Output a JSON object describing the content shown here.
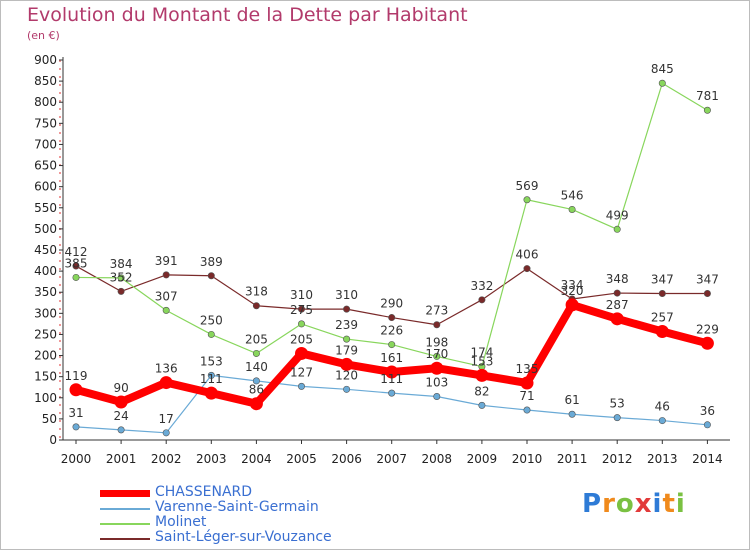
{
  "title": "Evolution du Montant de la Dette par Habitant",
  "unit": "(en €)",
  "brand": "Proxiti",
  "chart_data": {
    "type": "line",
    "title": "Evolution du Montant de la Dette par Habitant",
    "ylabel": "(en €)",
    "x": [
      "2000",
      "2001",
      "2002",
      "2003",
      "2004",
      "2005",
      "2006",
      "2007",
      "2008",
      "2009",
      "2010",
      "2011",
      "2012",
      "2013",
      "2014"
    ],
    "yticks": [
      "0",
      "50",
      "100",
      "150",
      "200",
      "250",
      "300",
      "350",
      "400",
      "450",
      "500",
      "550",
      "600",
      "650",
      "700",
      "750",
      "800",
      "850",
      "900"
    ],
    "ylim": [
      0,
      900
    ],
    "grid": false,
    "legend": "bottom-left",
    "series": [
      {
        "name": "CHASSENARD",
        "color": "#ff0000",
        "values": [
          119,
          90,
          136,
          111,
          86,
          205,
          179,
          161,
          170,
          153,
          135,
          320,
          287,
          257,
          229
        ],
        "labels": [
          "119",
          "90",
          "136",
          "111",
          "86",
          "205",
          "179",
          "161",
          "170",
          "153",
          "135",
          "320",
          "287",
          "257",
          "229"
        ]
      },
      {
        "name": "Varenne-Saint-Germain",
        "color": "#6aaad6",
        "values": [
          31,
          24,
          17,
          153,
          140,
          127,
          120,
          111,
          103,
          82,
          71,
          61,
          53,
          46,
          36
        ],
        "labels": [
          "31",
          "24",
          "17",
          "153",
          "140",
          "127",
          "120",
          "111",
          "103",
          "82",
          "71",
          "61",
          "53",
          "46",
          "36"
        ]
      },
      {
        "name": "Molinet",
        "color": "#88d65c",
        "values": [
          385,
          384,
          307,
          250,
          205,
          275,
          239,
          226,
          198,
          174,
          569,
          546,
          499,
          845,
          781
        ],
        "labels": [
          "385",
          "384",
          "307",
          "250",
          "205",
          "275",
          "239",
          "226",
          "198",
          "174",
          "569",
          "546",
          "499",
          "845",
          "781"
        ]
      },
      {
        "name": "Saint-Léger-sur-Vouzance",
        "color": "#7a2a2a",
        "values": [
          412,
          352,
          391,
          389,
          318,
          310,
          310,
          290,
          273,
          332,
          406,
          334,
          348,
          347,
          347
        ],
        "labels": [
          "412",
          "352",
          "391",
          "389",
          "318",
          "310",
          "310",
          "290",
          "273",
          "332",
          "406",
          "334",
          "348",
          "347",
          "347"
        ]
      }
    ]
  }
}
